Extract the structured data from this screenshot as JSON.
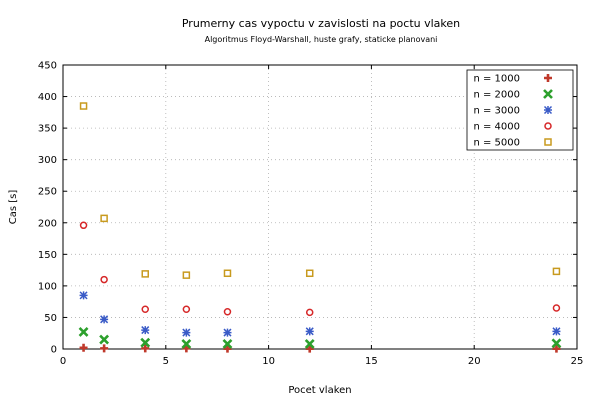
{
  "chart_data": {
    "type": "scatter",
    "title": "Prumerny cas vypoctu v zavislosti na poctu vlaken",
    "subtitle": "Algoritmus Floyd-Warshall, huste grafy, staticke planovani",
    "xlabel": "Pocet vlaken",
    "ylabel": "Cas [s]",
    "xlim": [
      0,
      25
    ],
    "ylim": [
      0,
      450
    ],
    "xticks": [
      0,
      5,
      10,
      15,
      20,
      25
    ],
    "yticks": [
      0,
      50,
      100,
      150,
      200,
      250,
      300,
      350,
      400,
      450
    ],
    "grid": true,
    "legend_position": "top-right",
    "x": [
      1,
      2,
      4,
      6,
      8,
      12,
      24
    ],
    "series": [
      {
        "name": "n = 1000",
        "marker": "plus",
        "color": "#c0392b",
        "values": [
          2,
          1,
          1,
          1,
          0.5,
          0.5,
          0.5
        ]
      },
      {
        "name": "n = 2000",
        "marker": "cross",
        "color": "#2ca02c",
        "values": [
          27,
          15,
          10,
          8,
          8,
          8,
          9
        ]
      },
      {
        "name": "n = 3000",
        "marker": "star",
        "color": "#3a5bc7",
        "values": [
          85,
          47,
          30,
          26,
          26,
          28,
          28
        ]
      },
      {
        "name": "n = 4000",
        "marker": "circle",
        "color": "#d62728",
        "values": [
          196,
          110,
          63,
          63,
          59,
          58,
          65
        ]
      },
      {
        "name": "n = 5000",
        "marker": "square",
        "color": "#c89a1e",
        "values": [
          385,
          207,
          119,
          117,
          120,
          120,
          123
        ]
      }
    ]
  }
}
